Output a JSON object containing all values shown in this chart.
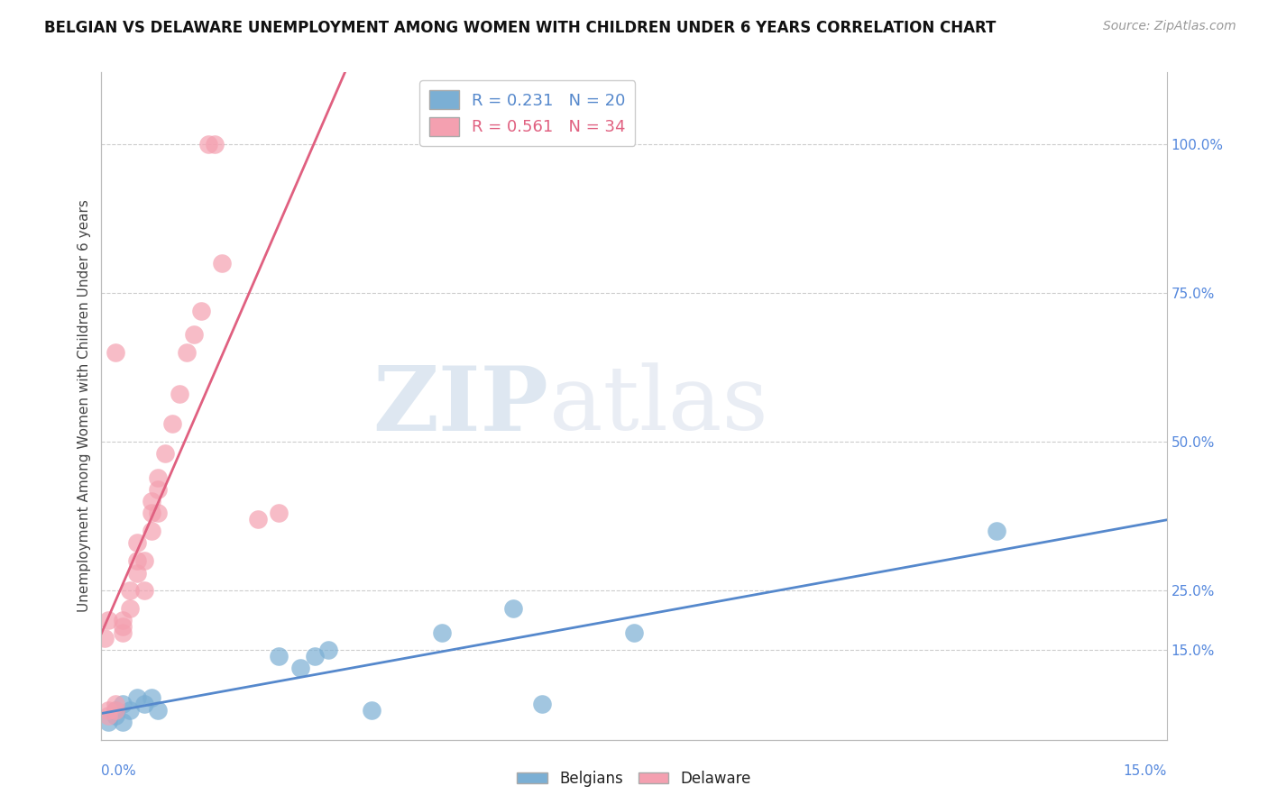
{
  "title": "BELGIAN VS DELAWARE UNEMPLOYMENT AMONG WOMEN WITH CHILDREN UNDER 6 YEARS CORRELATION CHART",
  "source": "Source: ZipAtlas.com",
  "ylabel": "Unemployment Among Women with Children Under 6 years",
  "blue_label": "Belgians",
  "pink_label": "Delaware",
  "blue_R": 0.231,
  "blue_N": 20,
  "pink_R": 0.561,
  "pink_N": 34,
  "blue_color": "#7BAFD4",
  "pink_color": "#F4A0B0",
  "blue_line_color": "#5588CC",
  "pink_line_color": "#E06080",
  "watermark_zip": "ZIP",
  "watermark_atlas": "atlas",
  "blue_scatter_x": [
    0.001,
    0.002,
    0.002,
    0.003,
    0.003,
    0.004,
    0.005,
    0.006,
    0.007,
    0.008,
    0.025,
    0.028,
    0.03,
    0.032,
    0.038,
    0.048,
    0.058,
    0.062,
    0.075,
    0.126
  ],
  "blue_scatter_y": [
    0.03,
    0.04,
    0.05,
    0.03,
    0.06,
    0.05,
    0.07,
    0.06,
    0.07,
    0.05,
    0.14,
    0.12,
    0.14,
    0.15,
    0.05,
    0.18,
    0.22,
    0.06,
    0.18,
    0.35
  ],
  "pink_scatter_x": [
    0.0005,
    0.001,
    0.001,
    0.001,
    0.002,
    0.002,
    0.002,
    0.003,
    0.003,
    0.003,
    0.004,
    0.004,
    0.005,
    0.005,
    0.005,
    0.006,
    0.006,
    0.007,
    0.007,
    0.007,
    0.008,
    0.008,
    0.008,
    0.009,
    0.01,
    0.011,
    0.012,
    0.013,
    0.014,
    0.015,
    0.016,
    0.017,
    0.022,
    0.025
  ],
  "pink_scatter_y": [
    0.17,
    0.04,
    0.05,
    0.2,
    0.05,
    0.06,
    0.65,
    0.18,
    0.19,
    0.2,
    0.22,
    0.25,
    0.28,
    0.3,
    0.33,
    0.25,
    0.3,
    0.35,
    0.38,
    0.4,
    0.38,
    0.42,
    0.44,
    0.48,
    0.53,
    0.58,
    0.65,
    0.68,
    0.72,
    1.0,
    1.0,
    0.8,
    0.37,
    0.38
  ],
  "xlim": [
    0,
    0.15
  ],
  "ylim": [
    0,
    1.12
  ],
  "right_yticks": [
    1.0,
    0.75,
    0.5,
    0.25,
    0.15
  ],
  "right_yticklabels": [
    "100.0%",
    "75.0%",
    "50.0%",
    "25.0%",
    "15.0%"
  ],
  "background_color": "#FFFFFF",
  "grid_color": "#CCCCCC"
}
